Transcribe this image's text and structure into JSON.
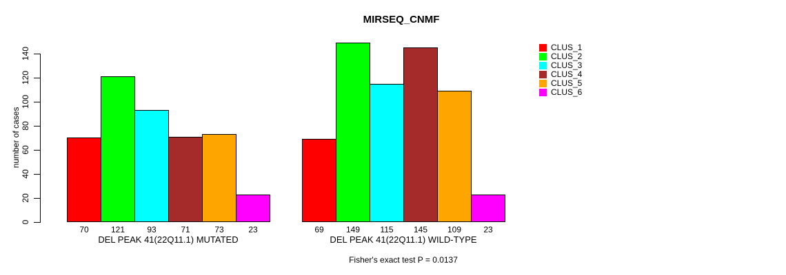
{
  "chart_data": {
    "type": "bar",
    "title": "MIRSEQ_CNMF",
    "ylabel": "number of cases",
    "ylim": [
      0,
      140
    ],
    "yticks": [
      0,
      20,
      40,
      60,
      80,
      100,
      120,
      140
    ],
    "grid": false,
    "legend_position": "right",
    "series_labels": [
      "CLUS_1",
      "CLUS_2",
      "CLUS_3",
      "CLUS_4",
      "CLUS_5",
      "CLUS_6"
    ],
    "series_colors": [
      "#ff0000",
      "#00ff00",
      "#00ffff",
      "#a52a2a",
      "#ffa500",
      "#ff00ff"
    ],
    "groups": [
      {
        "label": "DEL PEAK 41(22Q11.1) MUTATED",
        "values": [
          70,
          121,
          93,
          71,
          73,
          23
        ]
      },
      {
        "label": "DEL PEAK 41(22Q11.1) WILD-TYPE",
        "values": [
          69,
          149,
          115,
          145,
          109,
          23
        ]
      }
    ],
    "bar_value_labels_shown": true,
    "annotation": "Fisher's exact test P = 0.0137",
    "text_color": "#000000",
    "bar_border_color": "#000000"
  }
}
